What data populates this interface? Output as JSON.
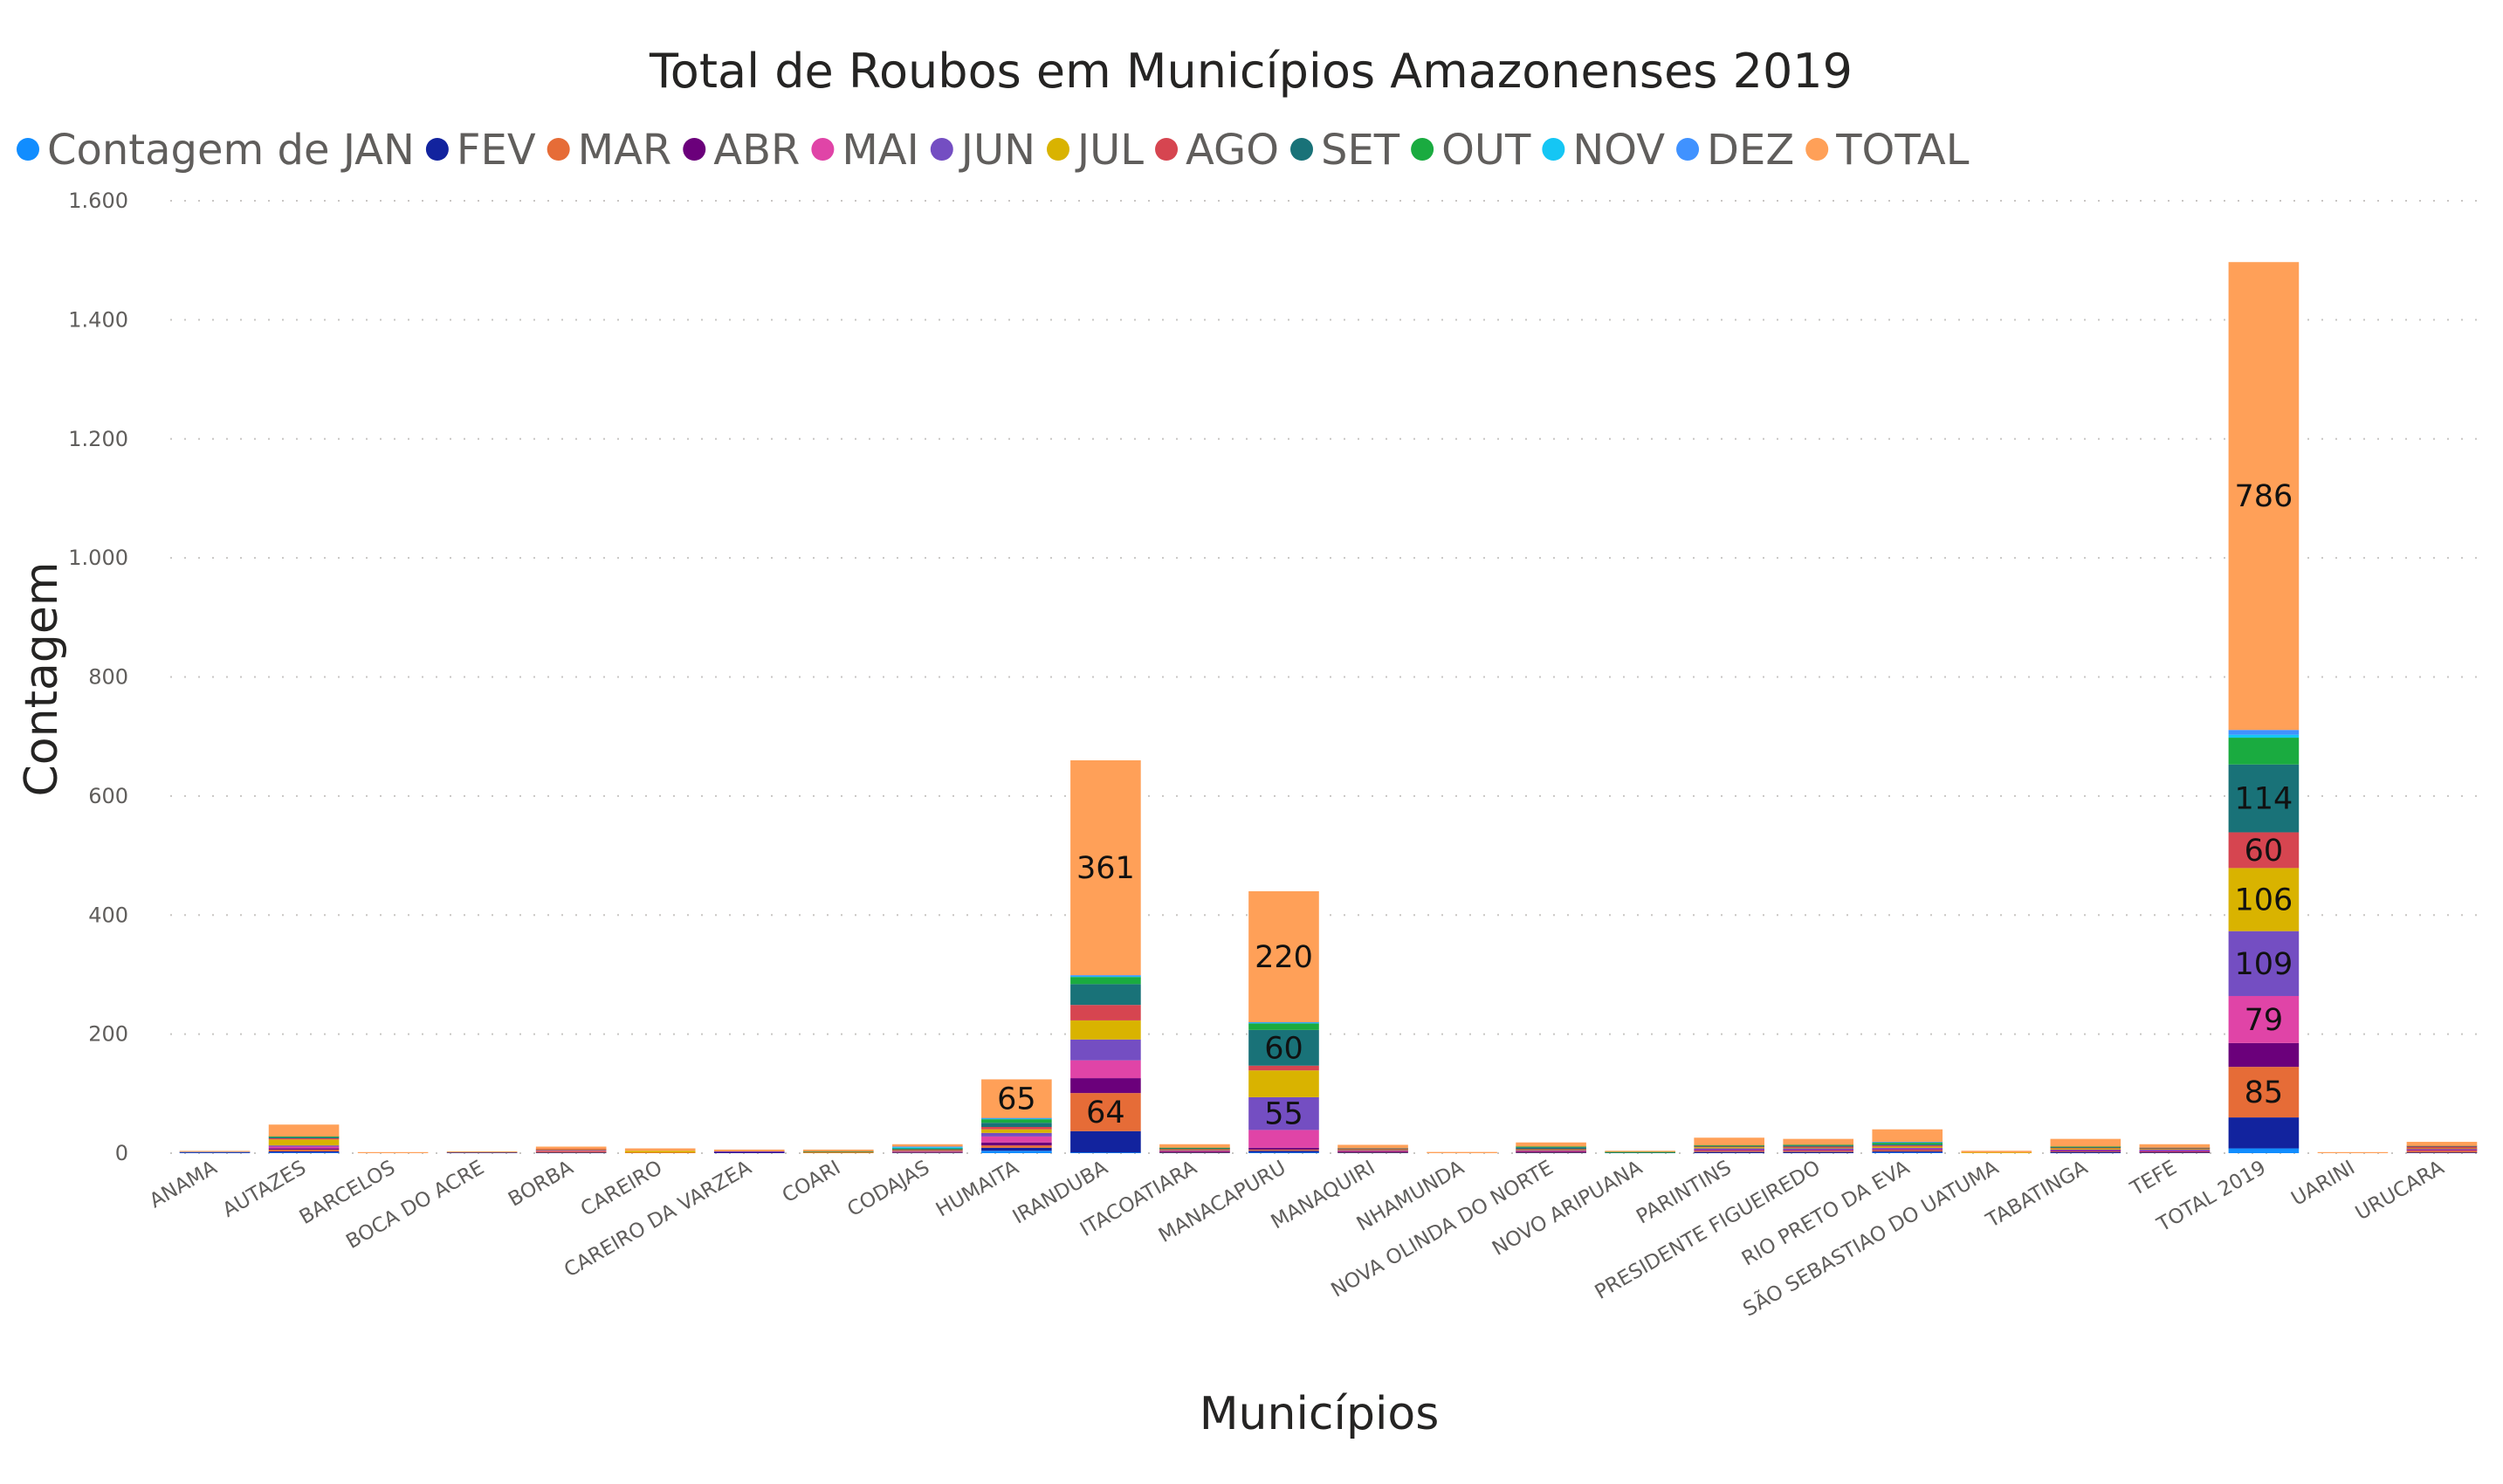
{
  "chart_data": {
    "type": "bar",
    "stacked": true,
    "title": "Total de Roubos em Municípios Amazonenses 2019",
    "xlabel": "Municípios",
    "ylabel": "Contagem",
    "ylim": [
      0,
      1600
    ],
    "yticks": [
      0,
      200,
      400,
      600,
      800,
      1000,
      1200,
      1400,
      1600
    ],
    "ytick_labels": [
      "0",
      "200",
      "400",
      "600",
      "800",
      "1.000",
      "1.200",
      "1.400",
      "1.600"
    ],
    "grid": true,
    "legend_position": "top-left",
    "categories": [
      "ANAMA",
      "AUTAZES",
      "BARCELOS",
      "BOCA DO ACRE",
      "BORBA",
      "CAREIRO",
      "CAREIRO DA VARZEA",
      "COARI",
      "CODAJAS",
      "HUMAITA",
      "IRANDUBA",
      "ITACOATIARA",
      "MANACAPURU",
      "MANAQUIRI",
      "NHAMUNDA",
      "NOVA OLINDA DO NORTE",
      "NOVO ARIPUANA",
      "PARINTINS",
      "PRESIDENTE FIGUEIREDO",
      "RIO PRETO DA EVA",
      "SÃO SEBASTIAO DO UATUMA",
      "TABATINGA",
      "TEFE",
      "TOTAL 2019",
      "UARINI",
      "URUCARA"
    ],
    "series": [
      {
        "name": "Contagem de JAN",
        "color": "#118DFF",
        "values": [
          0,
          1,
          0,
          0,
          0,
          0,
          0,
          0,
          0,
          4,
          1,
          0,
          1,
          0,
          0,
          0,
          0,
          0,
          0,
          1,
          0,
          0,
          0,
          8,
          0,
          0
        ]
      },
      {
        "name": "FEV",
        "color": "#12239E",
        "values": [
          1,
          2,
          0,
          1,
          1,
          0,
          1,
          0,
          1,
          5,
          36,
          1,
          3,
          1,
          0,
          1,
          0,
          2,
          2,
          2,
          0,
          2,
          1,
          52,
          0,
          1
        ]
      },
      {
        "name": "MAR",
        "color": "#E66C37",
        "values": [
          0,
          3,
          0,
          0,
          2,
          1,
          0,
          1,
          1,
          4,
          64,
          1,
          2,
          1,
          0,
          1,
          0,
          2,
          2,
          2,
          0,
          1,
          1,
          85,
          0,
          3
        ]
      },
      {
        "name": "ABR",
        "color": "#6B007B",
        "values": [
          0,
          2,
          0,
          0,
          0,
          0,
          1,
          0,
          0,
          5,
          25,
          1,
          3,
          1,
          0,
          1,
          0,
          1,
          1,
          1,
          0,
          1,
          1,
          40,
          0,
          1
        ]
      },
      {
        "name": "MAI",
        "color": "#E044A7",
        "values": [
          0,
          3,
          0,
          0,
          1,
          0,
          0,
          0,
          1,
          10,
          30,
          1,
          30,
          1,
          0,
          1,
          0,
          1,
          1,
          1,
          0,
          1,
          1,
          79,
          0,
          1
        ]
      },
      {
        "name": "JUN",
        "color": "#744EC2",
        "values": [
          0,
          2,
          0,
          0,
          1,
          0,
          1,
          0,
          1,
          6,
          35,
          1,
          55,
          1,
          0,
          1,
          0,
          2,
          2,
          2,
          0,
          1,
          2,
          109,
          0,
          1
        ]
      },
      {
        "name": "JUL",
        "color": "#D9B300",
        "values": [
          0,
          10,
          0,
          0,
          1,
          3,
          0,
          1,
          1,
          6,
          32,
          1,
          45,
          1,
          0,
          1,
          0,
          2,
          1,
          2,
          1,
          2,
          1,
          106,
          0,
          1
        ]
      },
      {
        "name": "AGO",
        "color": "#D64550",
        "values": [
          0,
          2,
          0,
          0,
          1,
          0,
          0,
          0,
          1,
          4,
          26,
          1,
          8,
          1,
          0,
          1,
          0,
          1,
          2,
          2,
          0,
          1,
          1,
          60,
          0,
          3
        ]
      },
      {
        "name": "SET",
        "color": "#197278",
        "values": [
          0,
          2,
          0,
          0,
          0,
          0,
          0,
          1,
          1,
          7,
          35,
          1,
          60,
          1,
          0,
          3,
          1,
          1,
          2,
          2,
          0,
          1,
          1,
          114,
          0,
          1
        ]
      },
      {
        "name": "OUT",
        "color": "#1AAB40",
        "values": [
          0,
          1,
          0,
          0,
          0,
          0,
          0,
          0,
          1,
          6,
          12,
          1,
          11,
          0,
          0,
          1,
          1,
          1,
          1,
          3,
          0,
          1,
          0,
          45,
          0,
          0
        ]
      },
      {
        "name": "NOV",
        "color": "#15C6F4",
        "values": [
          0,
          0,
          0,
          0,
          0,
          0,
          0,
          0,
          2,
          1,
          1,
          0,
          1,
          0,
          0,
          0,
          0,
          0,
          0,
          0,
          0,
          0,
          0,
          5,
          0,
          0
        ]
      },
      {
        "name": "DEZ",
        "color": "#4092FF",
        "values": [
          1,
          0,
          0,
          0,
          0,
          0,
          0,
          0,
          1,
          1,
          2,
          0,
          1,
          0,
          0,
          0,
          0,
          0,
          0,
          1,
          0,
          0,
          0,
          8,
          0,
          0
        ]
      },
      {
        "name": "TOTAL",
        "color": "#FFA058",
        "values": [
          1,
          20,
          1,
          2,
          4,
          4,
          3,
          3,
          4,
          65,
          361,
          6,
          220,
          6,
          2,
          7,
          2,
          13,
          10,
          21,
          3,
          13,
          6,
          786,
          1,
          7
        ]
      }
    ],
    "data_labels": [
      {
        "category": "HUMAITA",
        "series": "TOTAL",
        "text": "65"
      },
      {
        "category": "IRANDUBA",
        "series": "MAR",
        "text": "64"
      },
      {
        "category": "IRANDUBA",
        "series": "TOTAL",
        "text": "361"
      },
      {
        "category": "MANACAPURU",
        "series": "JUN",
        "text": "55"
      },
      {
        "category": "MANACAPURU",
        "series": "SET",
        "text": "60"
      },
      {
        "category": "MANACAPURU",
        "series": "TOTAL",
        "text": "220"
      },
      {
        "category": "TOTAL 2019",
        "series": "MAR",
        "text": "85"
      },
      {
        "category": "TOTAL 2019",
        "series": "MAI",
        "text": "79"
      },
      {
        "category": "TOTAL 2019",
        "series": "JUN",
        "text": "109"
      },
      {
        "category": "TOTAL 2019",
        "series": "JUL",
        "text": "106"
      },
      {
        "category": "TOTAL 2019",
        "series": "AGO",
        "text": "60"
      },
      {
        "category": "TOTAL 2019",
        "series": "SET",
        "text": "114"
      },
      {
        "category": "TOTAL 2019",
        "series": "TOTAL",
        "text": "786"
      }
    ]
  }
}
